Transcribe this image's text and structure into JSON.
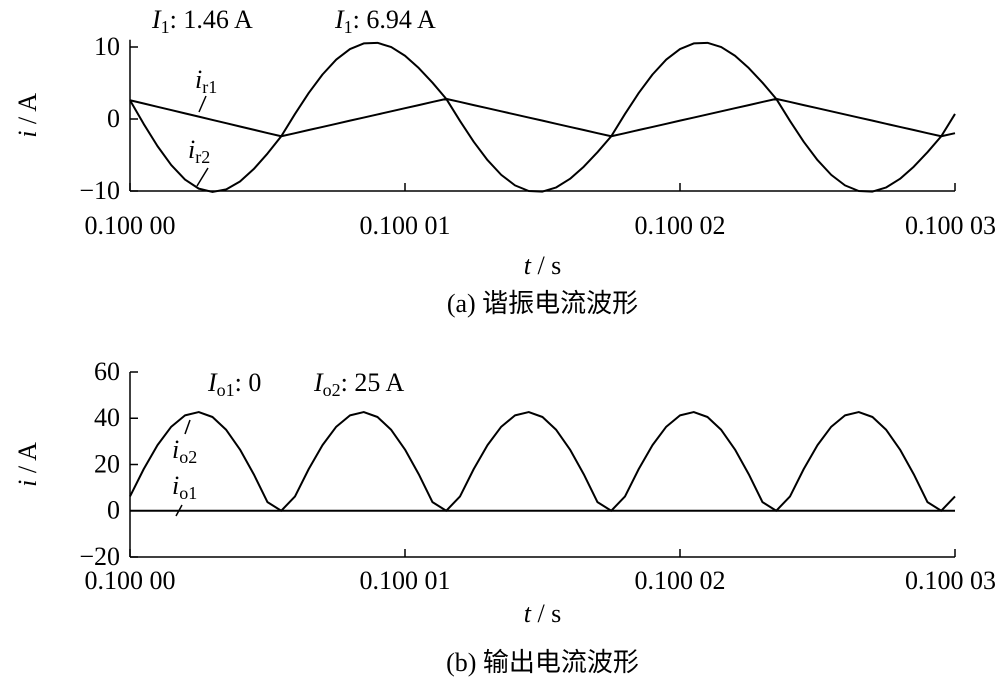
{
  "chart_data": [
    {
      "type": "line",
      "title": null,
      "caption": "(a) 谐振电流波形",
      "xlabel": "t / s",
      "ylabel": "i / A",
      "annotations": [
        "I1: 1.46 A",
        "I1: 6.94 A"
      ],
      "x": [
        0.1,
        0.1000005,
        0.100001,
        0.1000015,
        0.100002,
        0.1000025,
        0.100003,
        0.1000035,
        0.100004,
        0.1000045,
        0.100005,
        0.1000055,
        0.100006,
        0.1000065,
        0.100007,
        0.1000075,
        0.100008,
        0.1000085,
        0.100009,
        0.1000095,
        0.10001,
        0.1000105,
        0.100011,
        0.1000115,
        0.100012,
        0.1000125,
        0.100013,
        0.1000135,
        0.100014,
        0.1000145,
        0.100015,
        0.1000155,
        0.100016,
        0.1000165,
        0.100017,
        0.1000175,
        0.100018,
        0.1000185,
        0.100019,
        0.1000195,
        0.10002,
        0.1000205,
        0.100021,
        0.1000215,
        0.100022,
        0.1000225,
        0.100023,
        0.1000235,
        0.100024,
        0.1000245,
        0.100025,
        0.1000255,
        0.100026,
        0.1000265,
        0.100027,
        0.1000275,
        0.100028,
        0.1000285,
        0.100029,
        0.1000295,
        0.10003
      ],
      "series": [
        {
          "name": "ir1",
          "color": "#000000",
          "values": [
            2.6,
            2.15,
            1.69,
            1.24,
            0.78,
            0.33,
            -0.13,
            -0.58,
            -1.04,
            -1.49,
            -1.95,
            -2.4,
            0.7,
            3.62,
            6.18,
            8.25,
            9.72,
            10.5,
            10.58,
            9.99,
            8.78,
            7.08,
            5.04,
            2.8,
            2.37,
            1.93,
            1.5,
            1.07,
            0.63,
            0.2,
            -0.23,
            -0.67,
            -1.1,
            -1.53,
            -1.97,
            -2.4,
            0.7,
            3.62,
            6.18,
            8.25,
            9.72,
            10.5,
            10.58,
            9.99,
            8.78,
            7.08,
            5.04,
            2.8,
            2.37,
            1.93,
            1.5,
            1.07,
            0.63,
            0.2,
            -0.23,
            -0.67,
            -1.1,
            -1.53,
            -1.97,
            -2.4,
            0.7
          ]
        },
        {
          "name": "ir2",
          "color": "#000000",
          "values": [
            2.6,
            -0.7,
            -3.77,
            -6.4,
            -8.41,
            -9.67,
            -10.13,
            -9.77,
            -8.68,
            -6.95,
            -4.8,
            -2.4,
            -1.97,
            -1.53,
            -1.1,
            -0.67,
            -0.23,
            0.2,
            0.63,
            1.07,
            1.5,
            1.93,
            2.37,
            2.8,
            -0.27,
            -3.17,
            -5.71,
            -7.76,
            -9.22,
            -10.0,
            -10.08,
            -9.5,
            -8.31,
            -6.63,
            -4.61,
            -2.4,
            -1.97,
            -1.53,
            -1.1,
            -0.67,
            -0.23,
            0.2,
            0.63,
            1.07,
            1.5,
            1.93,
            2.37,
            2.8,
            -0.27,
            -3.17,
            -5.71,
            -7.76,
            -9.22,
            -10.0,
            -10.08,
            -9.5,
            -8.31,
            -6.63,
            -4.61,
            -2.4,
            -1.97
          ]
        }
      ],
      "xlim": [
        0.1,
        0.10003
      ],
      "xticks": [
        {
          "value": 0.1,
          "label": "0.100 00"
        },
        {
          "value": 0.10001,
          "label": "0.100 01"
        },
        {
          "value": 0.10002,
          "label": "0.100 02"
        },
        {
          "value": 0.10003,
          "label": "0.100 03"
        }
      ],
      "ylim": [
        -10,
        11
      ],
      "yticks": [
        10,
        0,
        {
          "value": -10,
          "label": "−10"
        }
      ],
      "grid": false
    },
    {
      "type": "line",
      "title": null,
      "caption": "(b) 输出电流波形",
      "xlabel": "t / s",
      "ylabel": "i / A",
      "annotations": [
        "Io1: 0",
        "Io2: 25 A"
      ],
      "x": [
        0.1,
        0.1000005,
        0.100001,
        0.1000015,
        0.100002,
        0.1000025,
        0.100003,
        0.1000035,
        0.100004,
        0.1000045,
        0.100005,
        0.1000055,
        0.100006,
        0.1000065,
        0.100007,
        0.1000075,
        0.100008,
        0.1000085,
        0.100009,
        0.1000095,
        0.10001,
        0.1000105,
        0.100011,
        0.1000115,
        0.100012,
        0.1000125,
        0.100013,
        0.1000135,
        0.100014,
        0.1000145,
        0.100015,
        0.1000155,
        0.100016,
        0.1000165,
        0.100017,
        0.1000175,
        0.100018,
        0.1000185,
        0.100019,
        0.1000195,
        0.10002,
        0.1000205,
        0.100021,
        0.1000215,
        0.100022,
        0.1000225,
        0.100023,
        0.1000235,
        0.100024,
        0.1000245,
        0.100025,
        0.1000255,
        0.100026,
        0.1000265,
        0.100027,
        0.1000275,
        0.100028,
        0.1000285,
        0.100029,
        0.1000295,
        0.10003
      ],
      "series": [
        {
          "name": "io2",
          "color": "#000000",
          "values": [
            6.19,
            18.05,
            28.39,
            36.34,
            41.24,
            42.68,
            40.54,
            34.96,
            26.47,
            15.8,
            3.72,
            0,
            6.19,
            18.05,
            28.39,
            36.34,
            41.24,
            42.68,
            40.54,
            34.96,
            26.47,
            15.8,
            3.72,
            0,
            6.19,
            18.05,
            28.39,
            36.34,
            41.24,
            42.68,
            40.54,
            34.96,
            26.47,
            15.8,
            3.72,
            0,
            6.19,
            18.05,
            28.39,
            36.34,
            41.24,
            42.68,
            40.54,
            34.96,
            26.47,
            15.8,
            3.72,
            0,
            6.19,
            18.05,
            28.39,
            36.34,
            41.24,
            42.68,
            40.54,
            34.96,
            26.47,
            15.8,
            3.72,
            0,
            6.19
          ]
        },
        {
          "name": "io1",
          "color": "#000000",
          "values": [
            0,
            0,
            0,
            0,
            0,
            0,
            0,
            0,
            0,
            0,
            0,
            0,
            0,
            0,
            0,
            0,
            0,
            0,
            0,
            0,
            0,
            0,
            0,
            0,
            0,
            0,
            0,
            0,
            0,
            0,
            0,
            0,
            0,
            0,
            0,
            0,
            0,
            0,
            0,
            0,
            0,
            0,
            0,
            0,
            0,
            0,
            0,
            0,
            0,
            0,
            0,
            0,
            0,
            0,
            0,
            0,
            0,
            0,
            0,
            0,
            0
          ]
        }
      ],
      "xlim": [
        0.1,
        0.10003
      ],
      "xticks": [
        {
          "value": 0.1,
          "label": "0.100 00"
        },
        {
          "value": 0.10001,
          "label": "0.100 01"
        },
        {
          "value": 0.10002,
          "label": "0.100 02"
        },
        {
          "value": 0.10003,
          "label": "0.100 03"
        }
      ],
      "ylim": [
        -20,
        60
      ],
      "yticks": [
        60,
        40,
        20,
        0,
        {
          "value": -20,
          "label": "−20"
        }
      ],
      "grid": false
    }
  ]
}
